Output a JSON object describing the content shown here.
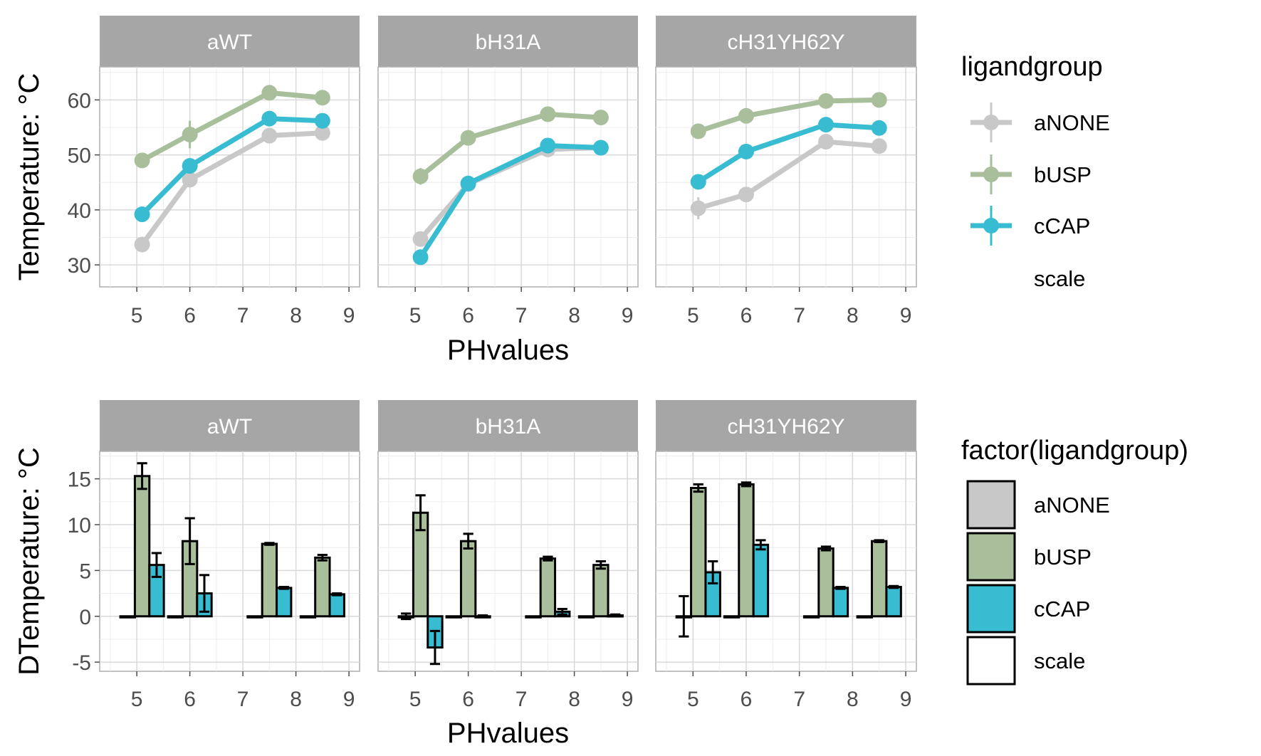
{
  "colors": {
    "aNONE": "#c8c8c8",
    "bUSP": "#a9bf9c",
    "cCAP": "#38bcd1",
    "scale": "#ffffff",
    "strip": "#a6a6a6"
  },
  "chart_data": [
    {
      "type": "line",
      "facets": [
        "aWT",
        "bH31A",
        "cH31YH62Y"
      ],
      "xlabel": "PHvalues",
      "ylabel": "Temperature: °C",
      "xlim": [
        4.3,
        9.2
      ],
      "ylim": [
        26,
        66
      ],
      "xticks": [
        "5",
        "6",
        "7",
        "8",
        "9"
      ],
      "yticks": [
        "30",
        "40",
        "50",
        "60"
      ],
      "legend_title": "ligandgroup",
      "legend_items": [
        "aNONE",
        "bUSP",
        "cCAP",
        "scale"
      ],
      "legend_position": "right",
      "x": [
        5.1,
        6.0,
        7.5,
        8.5
      ],
      "series": [
        {
          "facet": "aWT",
          "name": "aNONE",
          "values": [
            33.7,
            45.5,
            53.5,
            54.0
          ],
          "errors": [
            0.6,
            1.0,
            0.5,
            0.5
          ]
        },
        {
          "facet": "aWT",
          "name": "bUSP",
          "values": [
            49.0,
            53.7,
            61.3,
            60.4
          ],
          "errors": [
            0.5,
            2.5,
            0.5,
            0.5
          ]
        },
        {
          "facet": "aWT",
          "name": "cCAP",
          "values": [
            39.2,
            48.0,
            56.6,
            56.2
          ],
          "errors": [
            0.5,
            1.0,
            0.5,
            0.5
          ]
        },
        {
          "facet": "bH31A",
          "name": "aNONE",
          "values": [
            34.7,
            44.7,
            51.0,
            51.3
          ],
          "errors": [
            0.5,
            1.0,
            0.5,
            0.5
          ]
        },
        {
          "facet": "bH31A",
          "name": "bUSP",
          "values": [
            46.1,
            53.1,
            57.4,
            56.8
          ],
          "errors": [
            1.5,
            0.5,
            0.5,
            0.5
          ]
        },
        {
          "facet": "bH31A",
          "name": "cCAP",
          "values": [
            31.4,
            44.8,
            51.7,
            51.3
          ],
          "errors": [
            0.5,
            0.5,
            0.5,
            0.5
          ]
        },
        {
          "facet": "cH31YH62Y",
          "name": "aNONE",
          "values": [
            40.3,
            42.8,
            52.4,
            51.6
          ],
          "errors": [
            2.0,
            0.5,
            0.5,
            0.5
          ]
        },
        {
          "facet": "cH31YH62Y",
          "name": "bUSP",
          "values": [
            54.3,
            57.1,
            59.8,
            60.0
          ],
          "errors": [
            0.5,
            0.5,
            0.5,
            0.5
          ]
        },
        {
          "facet": "cH31YH62Y",
          "name": "cCAP",
          "values": [
            45.1,
            50.6,
            55.5,
            54.9
          ],
          "errors": [
            0.5,
            0.5,
            0.5,
            0.5
          ]
        }
      ]
    },
    {
      "type": "bar",
      "facets": [
        "aWT",
        "bH31A",
        "cH31YH62Y"
      ],
      "xlabel": "PHvalues",
      "ylabel": "DTemperature: °C",
      "xlim": [
        4.3,
        9.2
      ],
      "ylim": [
        -6,
        18
      ],
      "xticks": [
        "5",
        "6",
        "7",
        "8",
        "9"
      ],
      "yticks": [
        "-5",
        "0",
        "5",
        "10",
        "15"
      ],
      "legend_title": "factor(ligandgroup)",
      "legend_items": [
        "aNONE",
        "bUSP",
        "cCAP",
        "scale"
      ],
      "legend_position": "right",
      "x": [
        5.1,
        6.0,
        7.5,
        8.5
      ],
      "series": [
        {
          "facet": "aWT",
          "name": "aNONE",
          "values": [
            0,
            0,
            0,
            0
          ],
          "errors": [
            0,
            0,
            0,
            0
          ]
        },
        {
          "facet": "aWT",
          "name": "bUSP",
          "values": [
            15.3,
            8.2,
            7.9,
            6.4
          ],
          "errors": [
            1.4,
            2.5,
            0.1,
            0.3
          ]
        },
        {
          "facet": "aWT",
          "name": "cCAP",
          "values": [
            5.6,
            2.5,
            3.1,
            2.4
          ],
          "errors": [
            1.3,
            2.0,
            0.1,
            0.1
          ]
        },
        {
          "facet": "bH31A",
          "name": "aNONE",
          "values": [
            0,
            0,
            0,
            0
          ],
          "errors": [
            0.3,
            0,
            0,
            0
          ]
        },
        {
          "facet": "bH31A",
          "name": "bUSP",
          "values": [
            11.3,
            8.2,
            6.3,
            5.6
          ],
          "errors": [
            1.9,
            0.8,
            0.2,
            0.4
          ]
        },
        {
          "facet": "bH31A",
          "name": "cCAP",
          "values": [
            -3.4,
            0,
            0.5,
            0.1
          ],
          "errors": [
            1.8,
            0.1,
            0.3,
            0.1
          ]
        },
        {
          "facet": "cH31YH62Y",
          "name": "aNONE",
          "values": [
            0,
            0,
            0,
            0
          ],
          "errors": [
            2.2,
            0,
            0,
            0
          ]
        },
        {
          "facet": "cH31YH62Y",
          "name": "bUSP",
          "values": [
            14.0,
            14.4,
            7.4,
            8.2
          ],
          "errors": [
            0.4,
            0.2,
            0.2,
            0.1
          ]
        },
        {
          "facet": "cH31YH62Y",
          "name": "cCAP",
          "values": [
            4.8,
            7.8,
            3.1,
            3.2
          ],
          "errors": [
            1.2,
            0.5,
            0.1,
            0.1
          ]
        }
      ]
    }
  ]
}
